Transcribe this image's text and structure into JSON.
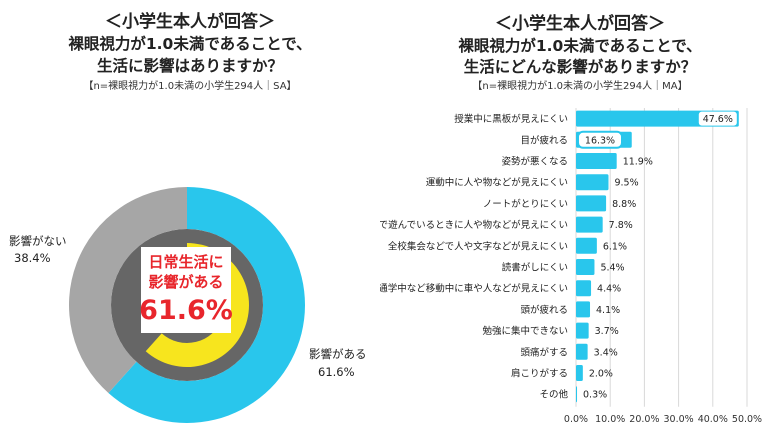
{
  "left": {
    "title1": "＜小学生本人が回答＞",
    "title2": "裸眼視力が1.0未満であることで、",
    "title3": "生活に影響はありますか？",
    "note": "【n=裸眼視力が1.0未満の小学生294人｜SA】",
    "center_line1": "日常生活に",
    "center_line2": "影響がある",
    "center_value": "61.6%"
  },
  "right": {
    "title1": "＜小学生本人が回答＞",
    "title2": "裸眼視力が1.0未満であることで、",
    "title3": "生活にどんな影響がありますか？",
    "note": "【n=裸眼視力が1.0未満の小学生294人｜MA】"
  },
  "colors": {
    "cyan": "#29c6ec",
    "gray": "#a6a6a6",
    "dark_gray": "#666666",
    "yellow": "#f7e51e",
    "red": "#e8262c"
  },
  "chart_data": [
    {
      "type": "pie",
      "categories": [
        "影響がある",
        "影響がない"
      ],
      "values": [
        61.6,
        38.4
      ],
      "labels": [
        "61.6%",
        "38.4%"
      ]
    },
    {
      "type": "bar",
      "orientation": "horizontal",
      "categories": [
        "授業中に黒板が見えにくい",
        "目が疲れる",
        "姿勢が悪くなる",
        "運動中に人や物などが見えにくい",
        "ノートがとりにくい",
        "外で遊んでいるときに人や物などが見えにくい",
        "全校集会などで人や文字などが見えにくい",
        "読書がしにくい",
        "通学中など移動中に車や人などが見えにくい",
        "頭が疲れる",
        "勉強に集中できない",
        "頭痛がする",
        "肩こりがする",
        "その他"
      ],
      "values": [
        47.6,
        16.3,
        11.9,
        9.5,
        8.8,
        7.8,
        6.1,
        5.4,
        4.4,
        4.1,
        3.7,
        3.4,
        2.0,
        0.3
      ],
      "labels": [
        "47.6%",
        "16.3%",
        "11.9%",
        "9.5%",
        "8.8%",
        "7.8%",
        "6.1%",
        "5.4%",
        "4.4%",
        "4.1%",
        "3.7%",
        "3.4%",
        "2.0%",
        "0.3%"
      ],
      "xlim": [
        0,
        50
      ],
      "xticks": [
        "0.0%",
        "10.0%",
        "20.0%",
        "30.0%",
        "40.0%",
        "50.0%"
      ],
      "grid": true
    }
  ]
}
